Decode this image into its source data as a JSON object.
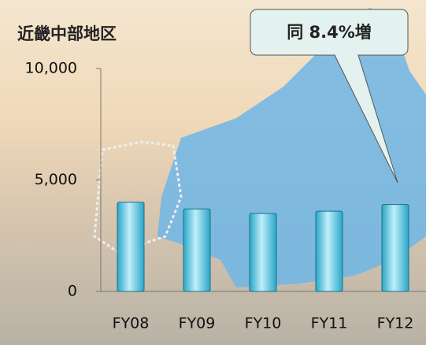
{
  "chart_data": {
    "type": "bar",
    "title": "近畿中部地区",
    "annotation": "同  8.4%増",
    "categories": [
      "FY08",
      "FY09",
      "FY10",
      "FY11",
      "FY12"
    ],
    "values": [
      4000,
      3700,
      3500,
      3600,
      3900
    ],
    "color": "#2aa6c8",
    "ylim": [
      0,
      10000
    ],
    "yticks": [
      0,
      {
        "value": 5000,
        "label": "5,000"
      },
      {
        "value": 10000,
        "label": "10,000"
      }
    ]
  }
}
